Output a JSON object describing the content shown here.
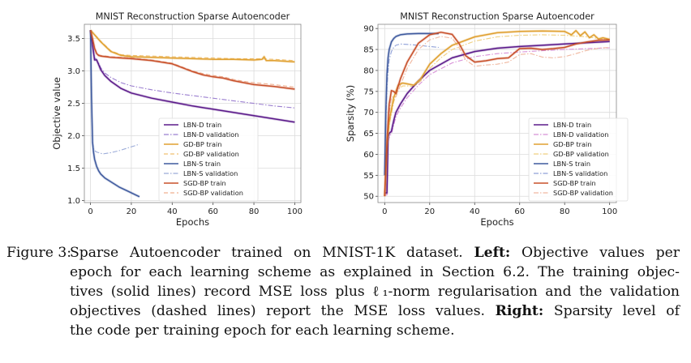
{
  "chart_data": [
    {
      "type": "line",
      "title": "MNIST Reconstruction Sparse Autoencoder",
      "xlabel": "Epochs",
      "ylabel": "Objective value",
      "xlim": [
        -3,
        103
      ],
      "ylim": [
        0.97,
        3.72
      ],
      "xticks": [
        0,
        20,
        40,
        60,
        80,
        100
      ],
      "yticks": [
        1.0,
        1.5,
        2.0,
        2.5,
        3.0,
        3.5
      ],
      "ytick_labels": [
        "1.0",
        "1.5",
        "2.0",
        "2.5",
        "3.0",
        "3.5"
      ],
      "grid": true,
      "legend_position": "lower-center",
      "series": [
        {
          "name": "LBN-D train",
          "color": "#5b1a8a",
          "dash": "solid",
          "x": [
            0,
            1,
            2,
            3,
            4,
            5,
            7,
            10,
            15,
            20,
            30,
            40,
            50,
            60,
            70,
            80,
            90,
            100
          ],
          "y": [
            3.63,
            3.4,
            3.17,
            3.17,
            3.1,
            3.02,
            2.93,
            2.84,
            2.73,
            2.66,
            2.58,
            2.52,
            2.46,
            2.41,
            2.36,
            2.31,
            2.26,
            2.21
          ]
        },
        {
          "name": "LBN-D validation",
          "color": "#9b7fd0",
          "dash": "dashdot",
          "x": [
            0,
            1,
            2,
            3,
            4,
            5,
            7,
            10,
            15,
            20,
            30,
            40,
            50,
            60,
            70,
            80,
            90,
            100
          ],
          "y": [
            3.63,
            3.42,
            3.2,
            3.18,
            3.12,
            3.05,
            2.97,
            2.9,
            2.82,
            2.77,
            2.71,
            2.66,
            2.62,
            2.58,
            2.54,
            2.5,
            2.46,
            2.43
          ]
        },
        {
          "name": "GD-BP train",
          "color": "#e0a030",
          "dash": "solid",
          "x": [
            0,
            5,
            10,
            15,
            20,
            30,
            40,
            50,
            60,
            70,
            80,
            84,
            85,
            86,
            90,
            100
          ],
          "y": [
            3.63,
            3.45,
            3.3,
            3.24,
            3.22,
            3.21,
            3.2,
            3.19,
            3.18,
            3.18,
            3.17,
            3.18,
            3.22,
            3.16,
            3.16,
            3.14
          ]
        },
        {
          "name": "GD-BP validation",
          "color": "#f0c070",
          "dash": "dashed",
          "x": [
            0,
            5,
            10,
            15,
            20,
            30,
            40,
            50,
            60,
            70,
            80,
            90,
            100
          ],
          "y": [
            3.63,
            3.46,
            3.31,
            3.25,
            3.24,
            3.23,
            3.22,
            3.21,
            3.2,
            3.19,
            3.19,
            3.18,
            3.16
          ]
        },
        {
          "name": "LBN-S train",
          "color": "#3f5a9e",
          "dash": "solid",
          "x": [
            0,
            0.5,
            1,
            1.5,
            2,
            3,
            4,
            5,
            7,
            10,
            14,
            18,
            22,
            24
          ],
          "y": [
            3.63,
            2.6,
            1.9,
            1.75,
            1.64,
            1.53,
            1.46,
            1.41,
            1.35,
            1.29,
            1.21,
            1.15,
            1.09,
            1.06
          ]
        },
        {
          "name": "LBN-S validation",
          "color": "#9aaad8",
          "dash": "dashdot",
          "x": [
            0,
            0.5,
            1,
            1.5,
            2,
            3,
            4,
            6,
            8,
            10,
            14,
            18,
            22,
            24
          ],
          "y": [
            3.63,
            2.6,
            1.9,
            1.8,
            1.77,
            1.75,
            1.74,
            1.72,
            1.73,
            1.74,
            1.77,
            1.81,
            1.85,
            1.87
          ]
        },
        {
          "name": "SGD-BP train",
          "color": "#c8502a",
          "dash": "solid",
          "x": [
            0,
            1,
            2,
            3,
            4,
            5,
            10,
            20,
            30,
            40,
            45,
            50,
            55,
            60,
            65,
            70,
            75,
            80,
            90,
            100
          ],
          "y": [
            3.63,
            3.5,
            3.35,
            3.27,
            3.24,
            3.23,
            3.21,
            3.19,
            3.16,
            3.11,
            3.05,
            2.99,
            2.94,
            2.91,
            2.89,
            2.85,
            2.82,
            2.79,
            2.76,
            2.72
          ]
        },
        {
          "name": "SGD-BP validation",
          "color": "#f0b090",
          "dash": "dashed",
          "x": [
            0,
            1,
            2,
            3,
            4,
            5,
            10,
            20,
            30,
            40,
            45,
            50,
            55,
            60,
            65,
            70,
            75,
            80,
            90,
            100
          ],
          "y": [
            3.63,
            3.5,
            3.36,
            3.28,
            3.25,
            3.24,
            3.22,
            3.2,
            3.17,
            3.12,
            3.06,
            3.0,
            2.96,
            2.93,
            2.91,
            2.87,
            2.84,
            2.82,
            2.79,
            2.75
          ]
        }
      ]
    },
    {
      "type": "line",
      "title": "MNIST Reconstruction Sparse Autoencoder",
      "xlabel": "Epochs",
      "ylabel": "Sparsity (%)",
      "xlim": [
        -3,
        103
      ],
      "ylim": [
        48.5,
        91
      ],
      "xticks": [
        0,
        20,
        40,
        60,
        80,
        100
      ],
      "yticks": [
        50,
        55,
        60,
        65,
        70,
        75,
        80,
        85,
        90
      ],
      "ytick_labels": [
        "50",
        "55",
        "60",
        "65",
        "70",
        "75",
        "80",
        "85",
        "90"
      ],
      "grid": true,
      "legend_position": "lower-right",
      "series": [
        {
          "name": "LBN-D train",
          "color": "#5b1a8a",
          "dash": "solid",
          "x": [
            0,
            1,
            1.5,
            2,
            3,
            4,
            5,
            7,
            10,
            15,
            20,
            30,
            40,
            50,
            60,
            70,
            80,
            90,
            100
          ],
          "y": [
            50.8,
            50.8,
            64,
            65,
            65.5,
            68,
            70,
            72,
            74.5,
            77.5,
            80,
            83,
            84.5,
            85.3,
            85.7,
            86.0,
            86.3,
            86.6,
            86.9
          ]
        },
        {
          "name": "LBN-D validation",
          "color": "#d890d8",
          "dash": "dashdot",
          "x": [
            0,
            1,
            1.5,
            2,
            3,
            4,
            5,
            7,
            10,
            15,
            20,
            30,
            40,
            50,
            60,
            70,
            80,
            90,
            100
          ],
          "y": [
            50.3,
            50.3,
            63,
            64,
            65,
            67,
            69,
            71,
            73.5,
            76.5,
            79,
            81.8,
            83.3,
            84.0,
            84.4,
            84.7,
            85.0,
            85.2,
            85.4
          ]
        },
        {
          "name": "GD-BP train",
          "color": "#e0a030",
          "dash": "solid",
          "x": [
            0,
            1,
            2,
            4,
            6,
            8,
            10,
            13,
            16,
            20,
            25,
            30,
            40,
            50,
            60,
            70,
            80,
            83,
            85,
            87,
            89,
            91,
            93,
            95,
            97,
            100
          ],
          "y": [
            50,
            62,
            68,
            73.5,
            76.5,
            77,
            76.8,
            76.5,
            78,
            81.5,
            84,
            86,
            88,
            89,
            89.3,
            89.4,
            89.3,
            88.5,
            89.5,
            88.3,
            89.2,
            87.8,
            88.5,
            87.5,
            87.8,
            87.4
          ]
        },
        {
          "name": "GD-BP validation",
          "color": "#f0d080",
          "dash": "dashdot",
          "x": [
            0,
            1,
            2,
            4,
            6,
            8,
            10,
            13,
            16,
            20,
            25,
            30,
            40,
            50,
            60,
            70,
            80,
            90,
            100
          ],
          "y": [
            50,
            61,
            67,
            72.5,
            75.5,
            76.3,
            76.3,
            76.2,
            77.5,
            80.5,
            83,
            85,
            87,
            88,
            88.4,
            88.5,
            88.4,
            88,
            87.2
          ]
        },
        {
          "name": "LBN-S train",
          "color": "#3f5a9e",
          "dash": "solid",
          "x": [
            0,
            0.5,
            1,
            1.5,
            2,
            3,
            4,
            5,
            7,
            10,
            15,
            20,
            24
          ],
          "y": [
            55,
            70,
            79,
            83,
            85,
            86.8,
            87.6,
            88.1,
            88.5,
            88.7,
            88.8,
            88.8,
            88.8
          ]
        },
        {
          "name": "LBN-S validation",
          "color": "#8fa0d8",
          "dash": "dashdot",
          "x": [
            0,
            0.5,
            1,
            1.5,
            2,
            3,
            4,
            5,
            7,
            10,
            15,
            20,
            24
          ],
          "y": [
            55,
            68,
            76,
            80,
            82.5,
            84.5,
            85.5,
            86,
            86.3,
            86.2,
            86,
            85.7,
            85.5
          ]
        },
        {
          "name": "SGD-BP train",
          "color": "#c8502a",
          "dash": "solid",
          "x": [
            0,
            1,
            2,
            3,
            4,
            5,
            7,
            10,
            15,
            20,
            25,
            30,
            33,
            36,
            40,
            45,
            50,
            55,
            60,
            65,
            70,
            75,
            80,
            85,
            90,
            95,
            100
          ],
          "y": [
            50,
            63,
            72,
            75.2,
            75,
            74.5,
            78,
            82,
            86.5,
            88.5,
            89.1,
            88.6,
            86.5,
            83.5,
            82,
            82.3,
            82.8,
            83,
            85.2,
            85.3,
            85,
            85.2,
            85.5,
            86.3,
            86.8,
            87.2,
            87.3
          ]
        },
        {
          "name": "SGD-BP validation",
          "color": "#f0b8a0",
          "dash": "dashdot",
          "x": [
            0,
            1,
            2,
            3,
            4,
            5,
            7,
            10,
            15,
            20,
            25,
            30,
            33,
            36,
            40,
            45,
            50,
            55,
            60,
            65,
            70,
            75,
            80,
            85,
            90,
            95,
            100
          ],
          "y": [
            50,
            62,
            70,
            73.5,
            73.8,
            73.7,
            76.5,
            80.5,
            85,
            87.3,
            88.1,
            87.7,
            85.5,
            82.5,
            81,
            81.3,
            81.5,
            82,
            83.8,
            84,
            83.2,
            83,
            83.3,
            84,
            84.8,
            85.3,
            85.5
          ]
        }
      ]
    }
  ],
  "caption": {
    "label": "Figure 3:",
    "lines": [
      [
        {
          "t": "Sparse Autoencoder trained on MNIST-1K dataset. "
        },
        {
          "t": "Left:",
          "b": true
        },
        {
          "t": " Objective values per"
        }
      ],
      [
        {
          "t": "epoch for each learning scheme as explained in Section 6.2.  The training objec-"
        }
      ],
      [
        {
          "t": "tives (solid lines) record MSE loss plus ℓ₁-norm regularisation and the validation"
        }
      ],
      [
        {
          "t": "objectives (dashed lines) report the MSE loss values. "
        },
        {
          "t": "Right:",
          "b": true
        },
        {
          "t": " Sparsity level of"
        }
      ],
      [
        {
          "t": "the code per training epoch for each learning scheme."
        }
      ]
    ]
  }
}
